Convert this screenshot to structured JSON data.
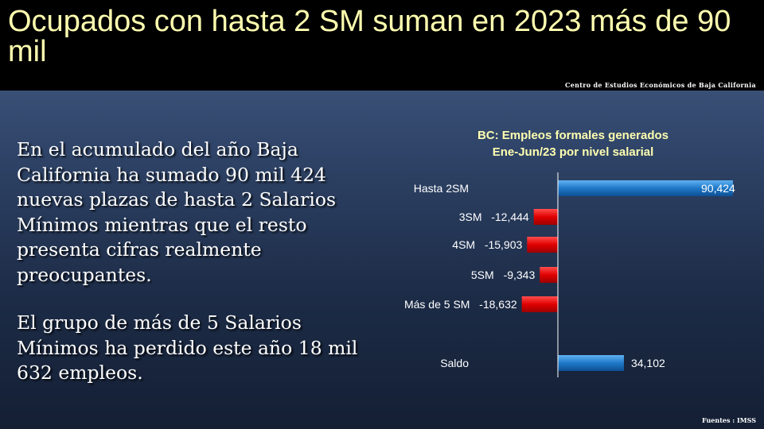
{
  "slide": {
    "title": "Ocupados con hasta 2 SM suman en 2023 más de 90 mil",
    "org": "Centro de Estudios  Económicos  de  Baja California",
    "paragraphs": [
      "En el acumulado del año Baja California ha sumado 90 mil 424 nuevas plazas de hasta 2 Salarios Mínimos mientras que el resto presenta cifras realmente preocupantes.",
      "El grupo de más de 5 Salarios Mínimos ha perdido este año 18 mil 632 empleos."
    ],
    "source": "Fuentes :  IMSS"
  },
  "chart_data": {
    "type": "bar",
    "orientation": "horizontal",
    "title_lines": [
      "BC: Empleos formales generados",
      "Ene-Jun/23  por nivel salarial"
    ],
    "categories": [
      "Hasta 2SM",
      "3SM",
      "4SM",
      "5SM",
      "Más de 5 SM",
      "Saldo"
    ],
    "values": [
      90424,
      -12444,
      -15903,
      -9343,
      -18632,
      34102
    ],
    "value_labels": [
      "90,424",
      "-12,444",
      "-15,903",
      "-9,343",
      "-18,632",
      "34,102"
    ],
    "colors": {
      "positive": "#1f78c8",
      "negative": "#e00000"
    },
    "grid": false
  }
}
